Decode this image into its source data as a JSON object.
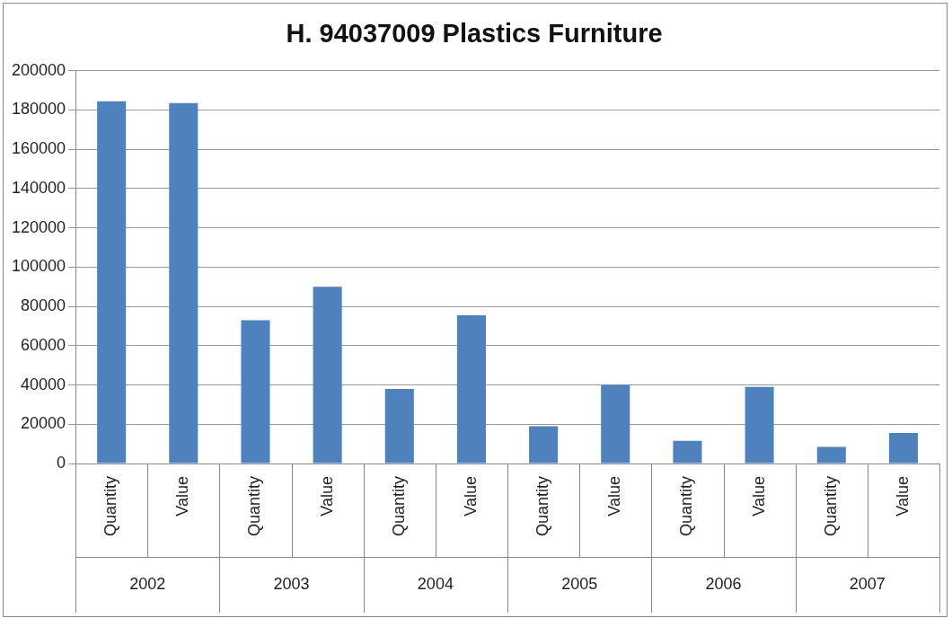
{
  "chart_data": {
    "type": "bar",
    "title": "H. 94037009 Plastics Furniture",
    "categories": [
      "Quantity",
      "Value",
      "Quantity",
      "Value",
      "Quantity",
      "Value",
      "Quantity",
      "Value",
      "Quantity",
      "Value",
      "Quantity",
      "Value"
    ],
    "values": [
      184500,
      183500,
      73000,
      90000,
      38000,
      75500,
      19000,
      40000,
      11500,
      39000,
      8500,
      15500
    ],
    "color": "#4f81bd",
    "ylim": [
      0,
      200000
    ],
    "yticks": [
      0,
      20000,
      40000,
      60000,
      80000,
      100000,
      120000,
      140000,
      160000,
      180000,
      200000
    ],
    "grid": "y",
    "annotations": [
      "2002",
      "2003",
      "2004",
      "2005",
      "2006",
      "2007"
    ]
  }
}
